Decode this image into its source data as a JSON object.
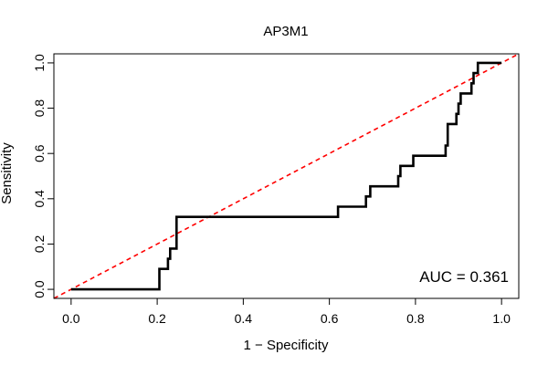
{
  "chart_data": {
    "type": "line",
    "title": "AP3M1",
    "xlabel": "1 − Specificity",
    "ylabel": "Sensitivity",
    "xlim": [
      -0.04,
      1.04
    ],
    "ylim": [
      -0.04,
      1.04
    ],
    "x_ticks": [
      0.0,
      0.2,
      0.4,
      0.6,
      0.8,
      1.0
    ],
    "x_tick_labels": [
      "0.0",
      "0.2",
      "0.4",
      "0.6",
      "0.8",
      "1.0"
    ],
    "y_ticks": [
      0.0,
      0.2,
      0.4,
      0.6,
      0.8,
      1.0
    ],
    "y_tick_labels": [
      "0.0",
      "0.2",
      "0.4",
      "0.6",
      "0.8",
      "1.0"
    ],
    "annotation": "AUC = 0.361",
    "grid": false,
    "series": [
      {
        "style": "step",
        "color": "#000000",
        "x": [
          0.0,
          0.205,
          0.205,
          0.225,
          0.225,
          0.23,
          0.23,
          0.245,
          0.245,
          0.62,
          0.62,
          0.685,
          0.685,
          0.695,
          0.695,
          0.76,
          0.76,
          0.765,
          0.765,
          0.795,
          0.795,
          0.87,
          0.87,
          0.875,
          0.875,
          0.895,
          0.895,
          0.9,
          0.9,
          0.905,
          0.905,
          0.93,
          0.93,
          0.935,
          0.935,
          0.945,
          0.945,
          1.0
        ],
        "y": [
          0.0,
          0.0,
          0.09,
          0.09,
          0.135,
          0.135,
          0.18,
          0.18,
          0.32,
          0.32,
          0.365,
          0.365,
          0.41,
          0.41,
          0.455,
          0.455,
          0.5,
          0.5,
          0.545,
          0.545,
          0.59,
          0.59,
          0.635,
          0.635,
          0.73,
          0.73,
          0.775,
          0.775,
          0.82,
          0.82,
          0.865,
          0.865,
          0.91,
          0.91,
          0.955,
          0.955,
          1.0,
          1.0
        ]
      },
      {
        "style": "reference-diagonal",
        "color": "#ff0000",
        "x": [
          -0.04,
          1.04
        ],
        "y": [
          -0.04,
          1.04
        ]
      }
    ]
  }
}
